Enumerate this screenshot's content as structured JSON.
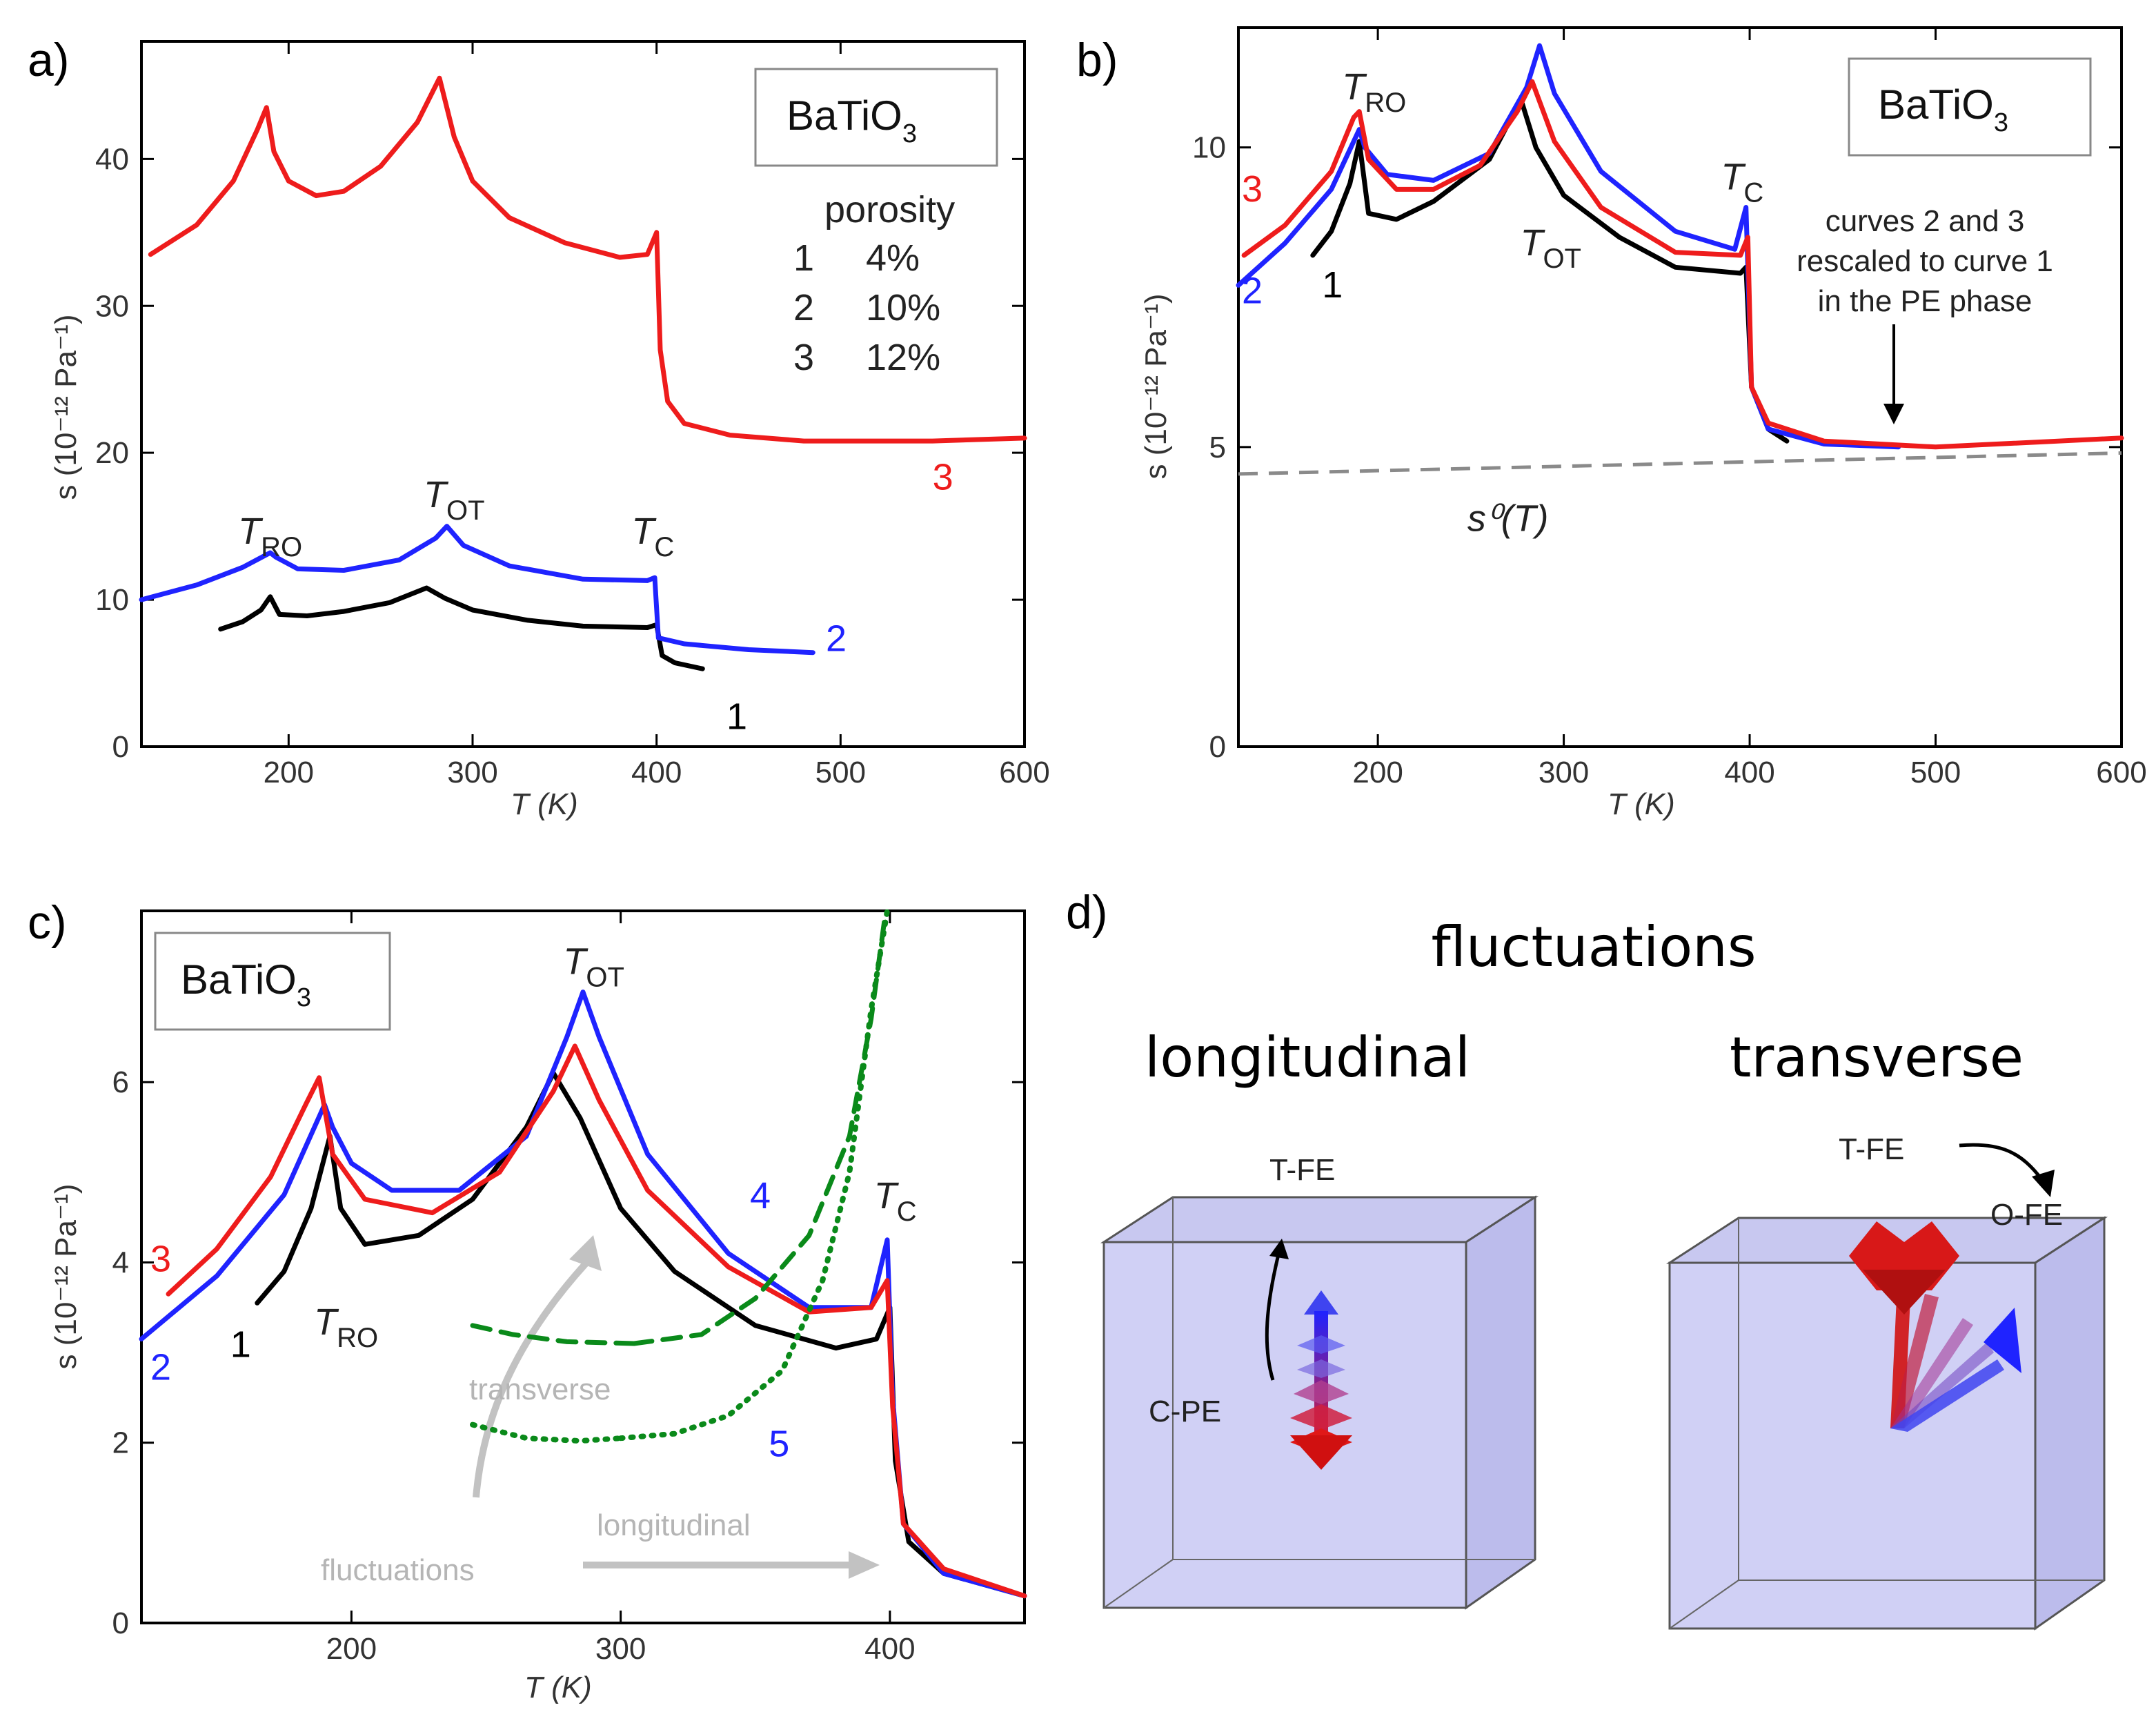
{
  "colors": {
    "red": "#ee1c1c",
    "blue": "#1f23ff",
    "black": "#000000",
    "green": "#0a8a1a",
    "gray": "#8a8a8a",
    "lightgray": "#b8b8b8"
  },
  "chart_data": [
    {
      "id": "a",
      "panel_label": "a)",
      "type": "line",
      "title": "",
      "material": "BaTiO",
      "xlabel": "T (K)",
      "ylabel": "s (10⁻¹² Pa⁻¹)",
      "xlim": [
        120,
        600
      ],
      "ylim": [
        0,
        48
      ],
      "xticks": [
        200,
        300,
        400,
        500,
        600
      ],
      "yticks": [
        0,
        10,
        20,
        30,
        40
      ],
      "legend": {
        "title": "porosity",
        "rows": [
          [
            "1",
            "4%"
          ],
          [
            "2",
            "10%"
          ],
          [
            "3",
            "12%"
          ]
        ]
      },
      "series": [
        {
          "name": "1",
          "color": "#000000",
          "points": [
            [
              163,
              8.0
            ],
            [
              175,
              8.5
            ],
            [
              185,
              9.3
            ],
            [
              190,
              10.2
            ],
            [
              195,
              9.0
            ],
            [
              210,
              8.9
            ],
            [
              230,
              9.2
            ],
            [
              255,
              9.8
            ],
            [
              275,
              10.8
            ],
            [
              285,
              10.1
            ],
            [
              300,
              9.3
            ],
            [
              330,
              8.6
            ],
            [
              360,
              8.2
            ],
            [
              395,
              8.1
            ],
            [
              400,
              8.3
            ],
            [
              403,
              6.2
            ],
            [
              410,
              5.7
            ],
            [
              425,
              5.3
            ]
          ]
        },
        {
          "name": "2",
          "color": "#1f23ff",
          "points": [
            [
              120,
              10.0
            ],
            [
              150,
              11.0
            ],
            [
              175,
              12.2
            ],
            [
              190,
              13.2
            ],
            [
              193,
              12.9
            ],
            [
              205,
              12.1
            ],
            [
              230,
              12.0
            ],
            [
              260,
              12.7
            ],
            [
              280,
              14.2
            ],
            [
              286,
              15.0
            ],
            [
              295,
              13.7
            ],
            [
              320,
              12.3
            ],
            [
              360,
              11.4
            ],
            [
              395,
              11.3
            ],
            [
              399,
              11.5
            ],
            [
              401,
              7.4
            ],
            [
              415,
              7.0
            ],
            [
              450,
              6.6
            ],
            [
              485,
              6.4
            ]
          ]
        },
        {
          "name": "3",
          "color": "#ee1c1c",
          "points": [
            [
              125,
              33.5
            ],
            [
              150,
              35.5
            ],
            [
              170,
              38.5
            ],
            [
              183,
              42.0
            ],
            [
              188,
              43.5
            ],
            [
              192,
              40.5
            ],
            [
              200,
              38.5
            ],
            [
              215,
              37.5
            ],
            [
              230,
              37.8
            ],
            [
              250,
              39.5
            ],
            [
              270,
              42.5
            ],
            [
              282,
              45.5
            ],
            [
              290,
              41.5
            ],
            [
              300,
              38.5
            ],
            [
              320,
              36.0
            ],
            [
              350,
              34.3
            ],
            [
              380,
              33.3
            ],
            [
              395,
              33.5
            ],
            [
              400,
              35.0
            ],
            [
              402,
              27.0
            ],
            [
              406,
              23.5
            ],
            [
              415,
              22.0
            ],
            [
              440,
              21.2
            ],
            [
              480,
              20.8
            ],
            [
              550,
              20.8
            ],
            [
              600,
              21.0
            ]
          ]
        }
      ],
      "annotations": [
        {
          "text": "T",
          "sub": "RO",
          "x": 190,
          "y": 13.8
        },
        {
          "text": "T",
          "sub": "OT",
          "x": 290,
          "y": 16.3
        },
        {
          "text": "T",
          "sub": "C",
          "x": 398,
          "y": 13.8
        }
      ],
      "curve_labels": [
        {
          "text": "3",
          "color": "#ee1c1c"
        },
        {
          "text": "2",
          "color": "#1f23ff"
        },
        {
          "text": "1",
          "color": "#000000"
        }
      ]
    },
    {
      "id": "b",
      "panel_label": "b)",
      "type": "line",
      "title": "",
      "material": "BaTiO",
      "xlabel": "T (K)",
      "ylabel": "s (10⁻¹² Pa⁻¹)",
      "xlim": [
        125,
        600
      ],
      "ylim": [
        0,
        12
      ],
      "xticks": [
        200,
        300,
        400,
        500,
        600
      ],
      "yticks": [
        0,
        5,
        10
      ],
      "note": [
        "curves 2 and 3",
        "rescaled to curve 1",
        "in the PE phase"
      ],
      "baseline_label": "s⁰(T)",
      "baseline": {
        "name": "s0(T)",
        "points": [
          [
            125,
            4.55
          ],
          [
            600,
            4.9
          ]
        ]
      },
      "series": [
        {
          "name": "1",
          "color": "#000000",
          "points": [
            [
              165,
              8.2
            ],
            [
              175,
              8.6
            ],
            [
              185,
              9.4
            ],
            [
              190,
              10.1
            ],
            [
              195,
              8.9
            ],
            [
              210,
              8.8
            ],
            [
              230,
              9.1
            ],
            [
              260,
              9.8
            ],
            [
              277,
              10.8
            ],
            [
              285,
              10.0
            ],
            [
              300,
              9.2
            ],
            [
              330,
              8.5
            ],
            [
              360,
              8.0
            ],
            [
              395,
              7.9
            ],
            [
              398,
              8.0
            ],
            [
              401,
              6.0
            ],
            [
              410,
              5.3
            ],
            [
              420,
              5.1
            ]
          ]
        },
        {
          "name": "2",
          "color": "#1f23ff",
          "points": [
            [
              125,
              7.7
            ],
            [
              150,
              8.4
            ],
            [
              175,
              9.3
            ],
            [
              190,
              10.3
            ],
            [
              193,
              10.0
            ],
            [
              205,
              9.55
            ],
            [
              230,
              9.45
            ],
            [
              260,
              9.9
            ],
            [
              280,
              11.0
            ],
            [
              287,
              11.7
            ],
            [
              295,
              10.9
            ],
            [
              320,
              9.6
            ],
            [
              360,
              8.6
            ],
            [
              392,
              8.3
            ],
            [
              398,
              9.0
            ],
            [
              401,
              6.0
            ],
            [
              410,
              5.3
            ],
            [
              440,
              5.05
            ],
            [
              480,
              5.0
            ]
          ]
        },
        {
          "name": "3",
          "color": "#ee1c1c",
          "points": [
            [
              128,
              8.2
            ],
            [
              150,
              8.7
            ],
            [
              175,
              9.6
            ],
            [
              187,
              10.5
            ],
            [
              190,
              10.6
            ],
            [
              195,
              9.8
            ],
            [
              210,
              9.3
            ],
            [
              230,
              9.3
            ],
            [
              255,
              9.7
            ],
            [
              275,
              10.6
            ],
            [
              283,
              11.1
            ],
            [
              295,
              10.1
            ],
            [
              320,
              9.0
            ],
            [
              360,
              8.25
            ],
            [
              395,
              8.2
            ],
            [
              399,
              8.5
            ],
            [
              401,
              6.0
            ],
            [
              410,
              5.4
            ],
            [
              440,
              5.1
            ],
            [
              500,
              5.0
            ],
            [
              600,
              5.15
            ]
          ]
        }
      ],
      "annotations": [
        {
          "text": "T",
          "sub": "RO",
          "x": 198,
          "y": 10.8
        },
        {
          "text": "T",
          "sub": "OT",
          "x": 293,
          "y": 8.2
        },
        {
          "text": "T",
          "sub": "C",
          "x": 396,
          "y": 9.3
        }
      ],
      "curve_labels": [
        {
          "text": "3",
          "color": "#ee1c1c"
        },
        {
          "text": "2",
          "color": "#1f23ff"
        },
        {
          "text": "1",
          "color": "#000000"
        }
      ]
    },
    {
      "id": "c",
      "panel_label": "c)",
      "type": "line",
      "title": "",
      "material": "BaTiO",
      "xlabel": "T (K)",
      "ylabel": "s (10⁻¹² Pa⁻¹)",
      "xlim": [
        122,
        450
      ],
      "ylim": [
        0,
        7.9
      ],
      "xticks": [
        200,
        300,
        400
      ],
      "yticks": [
        0,
        2,
        4,
        6
      ],
      "series": [
        {
          "name": "1",
          "color": "#000000",
          "points": [
            [
              165,
              3.55
            ],
            [
              175,
              3.9
            ],
            [
              185,
              4.6
            ],
            [
              192,
              5.4
            ],
            [
              196,
              4.6
            ],
            [
              205,
              4.2
            ],
            [
              225,
              4.3
            ],
            [
              245,
              4.7
            ],
            [
              265,
              5.5
            ],
            [
              275,
              6.1
            ],
            [
              285,
              5.6
            ],
            [
              300,
              4.6
            ],
            [
              320,
              3.9
            ],
            [
              350,
              3.3
            ],
            [
              380,
              3.05
            ],
            [
              395,
              3.15
            ],
            [
              400,
              3.5
            ],
            [
              402,
              1.8
            ],
            [
              407,
              0.9
            ],
            [
              420,
              0.55
            ],
            [
              450,
              0.3
            ]
          ]
        },
        {
          "name": "2",
          "color": "#1f23ff",
          "points": [
            [
              122,
              3.15
            ],
            [
              150,
              3.85
            ],
            [
              175,
              4.75
            ],
            [
              190,
              5.75
            ],
            [
              193,
              5.5
            ],
            [
              200,
              5.1
            ],
            [
              215,
              4.8
            ],
            [
              240,
              4.8
            ],
            [
              265,
              5.4
            ],
            [
              280,
              6.5
            ],
            [
              286,
              7.0
            ],
            [
              292,
              6.5
            ],
            [
              310,
              5.2
            ],
            [
              340,
              4.1
            ],
            [
              370,
              3.5
            ],
            [
              393,
              3.5
            ],
            [
              399,
              4.25
            ],
            [
              401,
              2.5
            ],
            [
              405,
              1.1
            ],
            [
              420,
              0.55
            ],
            [
              450,
              0.3
            ]
          ]
        },
        {
          "name": "3",
          "color": "#ee1c1c",
          "points": [
            [
              132,
              3.65
            ],
            [
              150,
              4.15
            ],
            [
              170,
              4.95
            ],
            [
              183,
              5.75
            ],
            [
              188,
              6.05
            ],
            [
              193,
              5.2
            ],
            [
              205,
              4.7
            ],
            [
              230,
              4.55
            ],
            [
              255,
              5.0
            ],
            [
              275,
              5.9
            ],
            [
              283,
              6.4
            ],
            [
              292,
              5.8
            ],
            [
              310,
              4.8
            ],
            [
              340,
              3.95
            ],
            [
              370,
              3.45
            ],
            [
              393,
              3.5
            ],
            [
              399,
              3.8
            ],
            [
              401,
              2.4
            ],
            [
              405,
              1.1
            ],
            [
              420,
              0.6
            ],
            [
              450,
              0.3
            ]
          ]
        },
        {
          "name": "4",
          "color": "#0a8a1a",
          "dash": "long",
          "points": [
            [
              305,
              3.1
            ],
            [
              330,
              3.2
            ],
            [
              350,
              3.6
            ],
            [
              370,
              4.3
            ],
            [
              385,
              5.4
            ],
            [
              393,
              6.7
            ],
            [
              398,
              7.8
            ]
          ]
        },
        {
          "name": "5",
          "color": "#0a8a1a",
          "dash": "dot",
          "points": [
            [
              300,
              2.05
            ],
            [
              320,
              2.1
            ],
            [
              340,
              2.3
            ],
            [
              360,
              2.8
            ],
            [
              375,
              3.8
            ],
            [
              385,
              5.0
            ],
            [
              393,
              6.8
            ],
            [
              399,
              7.9
            ]
          ]
        }
      ],
      "green_extra": [
        {
          "dash": "long",
          "points": [
            [
              245,
              3.3
            ],
            [
              260,
              3.2
            ],
            [
              280,
              3.12
            ],
            [
              305,
              3.1
            ]
          ]
        },
        {
          "dash": "dot",
          "points": [
            [
              245,
              2.2
            ],
            [
              265,
              2.05
            ],
            [
              285,
              2.02
            ],
            [
              300,
              2.05
            ]
          ]
        }
      ],
      "annotations": [
        {
          "text": "T",
          "sub": "OT",
          "x": 290,
          "y": 7.2
        },
        {
          "text": "T",
          "sub": "RO",
          "x": 198,
          "y": 3.2
        },
        {
          "text": "T",
          "sub": "C",
          "x": 402,
          "y": 4.6
        }
      ],
      "curve_labels": [
        {
          "text": "3",
          "color": "#ee1c1c"
        },
        {
          "text": "2",
          "color": "#1f23ff"
        },
        {
          "text": "1",
          "color": "#000000"
        },
        {
          "text": "4",
          "color": "#1f23ff"
        },
        {
          "text": "5",
          "color": "#1f23ff"
        }
      ],
      "gray_labels": [
        "transverse",
        "longitudinal",
        "fluctuations"
      ]
    }
  ],
  "panel_d": {
    "label": "d)",
    "title": "fluctuations",
    "left": {
      "heading": "longitudinal",
      "top_label": "T-FE",
      "side_label": "C-PE"
    },
    "right": {
      "heading": "transverse",
      "top_label": "T-FE",
      "side_label": "O-FE"
    }
  },
  "legend_material_sub": "3"
}
